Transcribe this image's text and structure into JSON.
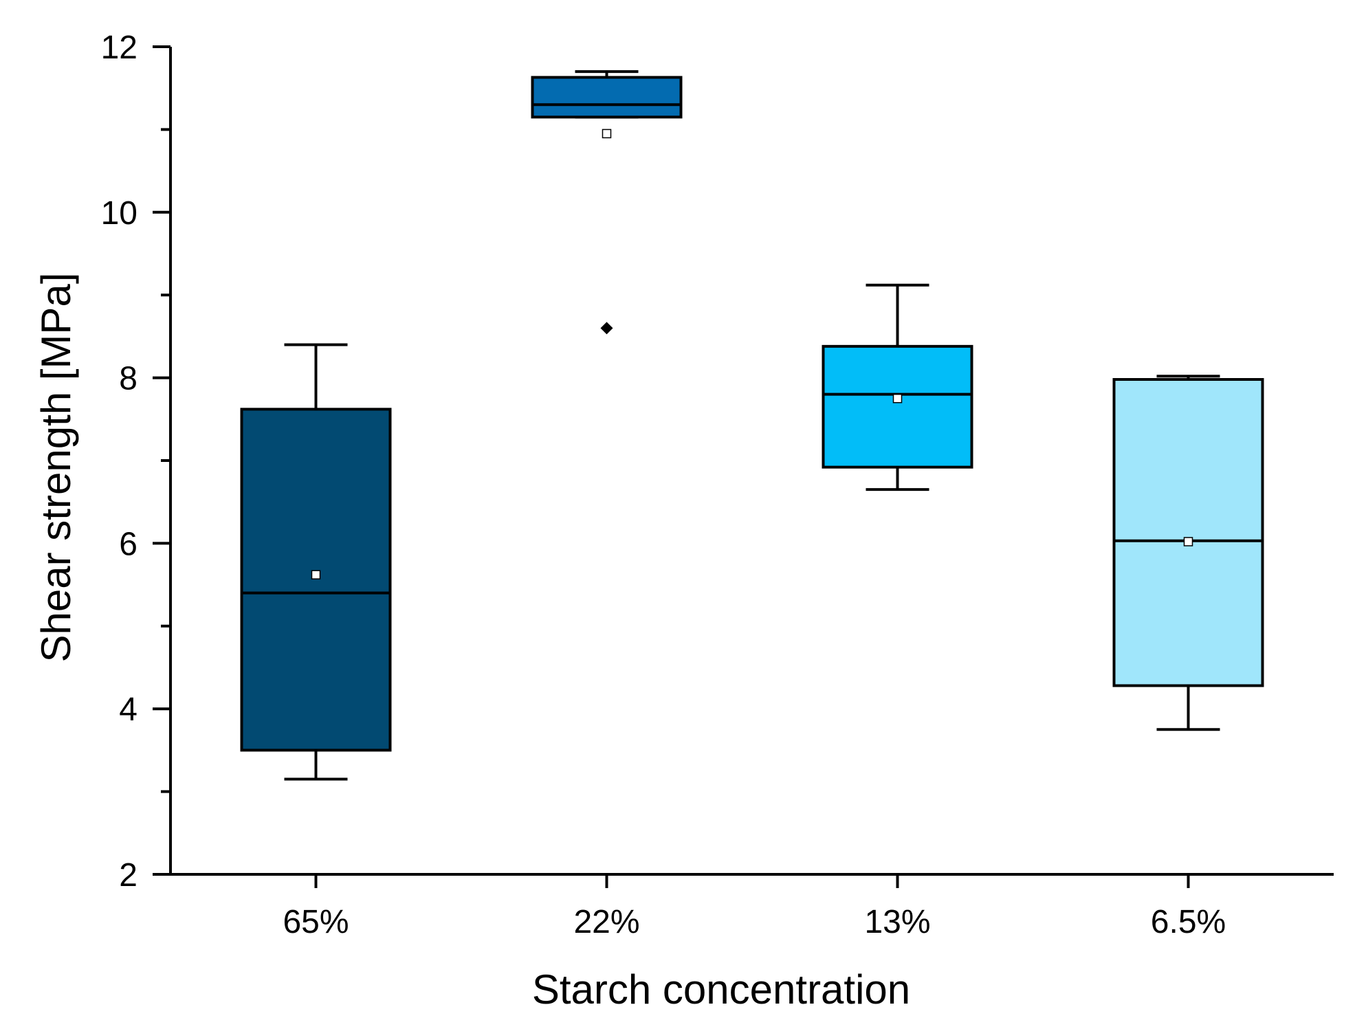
{
  "chart_data": {
    "type": "box",
    "xlabel": "Starch concentration",
    "ylabel": "Shear strength [MPa]",
    "ylim": [
      2,
      12
    ],
    "yticks": [
      2,
      4,
      6,
      8,
      10,
      12
    ],
    "yminor_ticks": [
      3,
      5,
      7,
      9,
      11
    ],
    "categories": [
      "65%",
      "22%",
      "13%",
      "6.5%"
    ],
    "boxes": [
      {
        "category": "65%",
        "whisker_low": 3.15,
        "q1": 3.5,
        "median": 5.4,
        "q3": 7.62,
        "whisker_high": 8.4,
        "mean": 5.62,
        "outliers": [],
        "color": "#024a72"
      },
      {
        "category": "22%",
        "whisker_low": 11.15,
        "q1": 11.15,
        "median": 11.3,
        "q3": 11.63,
        "whisker_high": 11.7,
        "mean": 10.95,
        "outliers": [
          8.6
        ],
        "color": "#036bb0"
      },
      {
        "category": "13%",
        "whisker_low": 6.65,
        "q1": 6.92,
        "median": 7.8,
        "q3": 8.38,
        "whisker_high": 9.12,
        "mean": 7.75,
        "outliers": [],
        "color": "#02bdf8"
      },
      {
        "category": "6.5%",
        "whisker_low": 3.75,
        "q1": 4.28,
        "median": 6.03,
        "q3": 7.98,
        "whisker_high": 8.02,
        "mean": 6.02,
        "outliers": [],
        "color": "#a0e6fb"
      }
    ]
  }
}
